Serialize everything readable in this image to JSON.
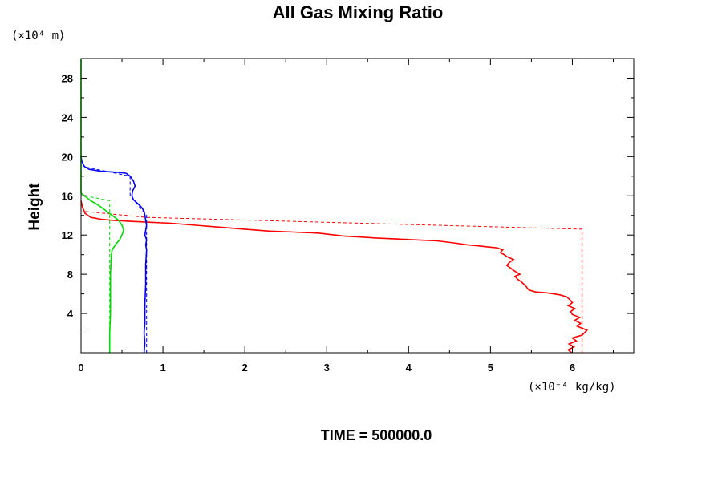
{
  "chart_data": {
    "type": "line",
    "title": "All Gas Mixing Ratio",
    "ylabel": "Height",
    "xlabel": "",
    "x_scale_label": "(×10⁻⁴ kg/kg)",
    "y_scale_label": "(×10⁴ m)",
    "footer": "TIME = 500000.0",
    "xlim": [
      0,
      6.75
    ],
    "ylim": [
      0,
      30
    ],
    "x_ticks": [
      0,
      1,
      2,
      3,
      4,
      5,
      6
    ],
    "x_tick_labels": [
      "0",
      "1",
      "2",
      "3",
      "4",
      "5",
      "6"
    ],
    "y_ticks": [
      4,
      8,
      12,
      16,
      20,
      24,
      28
    ],
    "y_tick_labels": [
      "4",
      "8",
      "12",
      "16",
      "20",
      "24",
      "28"
    ],
    "grid": false,
    "series": [
      {
        "color": "#ff0000",
        "style": "solid",
        "points": [
          [
            5.99,
            0.0
          ],
          [
            5.95,
            0.3
          ],
          [
            6.02,
            0.6
          ],
          [
            5.96,
            0.9
          ],
          [
            6.05,
            1.2
          ],
          [
            6.0,
            1.5
          ],
          [
            6.12,
            1.8
          ],
          [
            6.18,
            2.3
          ],
          [
            6.06,
            2.7
          ],
          [
            6.1,
            3.0
          ],
          [
            6.03,
            3.3
          ],
          [
            6.09,
            3.6
          ],
          [
            6.0,
            3.9
          ],
          [
            5.98,
            4.2
          ],
          [
            6.03,
            4.5
          ],
          [
            5.95,
            4.8
          ],
          [
            6.0,
            5.1
          ],
          [
            5.97,
            5.4
          ],
          [
            5.93,
            5.7
          ],
          [
            5.85,
            5.9
          ],
          [
            5.7,
            6.1
          ],
          [
            5.55,
            6.2
          ],
          [
            5.47,
            6.4
          ],
          [
            5.43,
            6.8
          ],
          [
            5.38,
            7.2
          ],
          [
            5.33,
            7.5
          ],
          [
            5.3,
            7.8
          ],
          [
            5.36,
            8.0
          ],
          [
            5.3,
            8.3
          ],
          [
            5.25,
            8.6
          ],
          [
            5.2,
            8.9
          ],
          [
            5.23,
            9.2
          ],
          [
            5.28,
            9.5
          ],
          [
            5.2,
            9.8
          ],
          [
            5.17,
            10.0
          ],
          [
            5.12,
            10.2
          ],
          [
            5.15,
            10.5
          ],
          [
            5.08,
            10.7
          ],
          [
            4.96,
            10.8
          ],
          [
            4.85,
            10.9
          ],
          [
            4.72,
            11.0
          ],
          [
            4.55,
            11.2
          ],
          [
            4.35,
            11.4
          ],
          [
            4.1,
            11.5
          ],
          [
            3.85,
            11.6
          ],
          [
            3.6,
            11.7
          ],
          [
            3.4,
            11.8
          ],
          [
            3.2,
            11.9
          ],
          [
            3.1,
            12.0
          ],
          [
            2.9,
            12.2
          ],
          [
            2.6,
            12.3
          ],
          [
            2.3,
            12.4
          ],
          [
            2.0,
            12.6
          ],
          [
            1.7,
            12.8
          ],
          [
            1.4,
            13.0
          ],
          [
            1.1,
            13.2
          ],
          [
            0.85,
            13.3
          ],
          [
            0.6,
            13.4
          ],
          [
            0.4,
            13.5
          ],
          [
            0.25,
            13.6
          ],
          [
            0.12,
            13.8
          ],
          [
            0.05,
            14.2
          ],
          [
            0.02,
            14.8
          ],
          [
            0.0,
            15.5
          ]
        ]
      },
      {
        "color": "#ff0000",
        "style": "dashed",
        "points": [
          [
            6.12,
            0.0
          ],
          [
            6.12,
            12.6
          ],
          [
            0.8,
            13.8
          ],
          [
            0.05,
            14.4
          ],
          [
            0.0,
            15.0
          ]
        ]
      },
      {
        "color": "#0000ff",
        "style": "solid",
        "points": [
          [
            0.77,
            0.0
          ],
          [
            0.78,
            1.0
          ],
          [
            0.77,
            2.0
          ],
          [
            0.78,
            3.0
          ],
          [
            0.78,
            5.0
          ],
          [
            0.79,
            7.0
          ],
          [
            0.79,
            9.0
          ],
          [
            0.8,
            10.5
          ],
          [
            0.79,
            11.0
          ],
          [
            0.8,
            11.5
          ],
          [
            0.78,
            12.0
          ],
          [
            0.79,
            12.5
          ],
          [
            0.8,
            13.0
          ],
          [
            0.79,
            13.5
          ],
          [
            0.78,
            14.0
          ],
          [
            0.77,
            14.4
          ],
          [
            0.75,
            14.7
          ],
          [
            0.72,
            15.0
          ],
          [
            0.68,
            15.3
          ],
          [
            0.64,
            15.6
          ],
          [
            0.62,
            16.0
          ],
          [
            0.63,
            16.5
          ],
          [
            0.66,
            17.0
          ],
          [
            0.64,
            17.5
          ],
          [
            0.6,
            18.0
          ],
          [
            0.55,
            18.3
          ],
          [
            0.45,
            18.4
          ],
          [
            0.25,
            18.5
          ],
          [
            0.1,
            18.7
          ],
          [
            0.04,
            19.0
          ],
          [
            0.01,
            19.5
          ],
          [
            0.0,
            20.0
          ]
        ]
      },
      {
        "color": "#0000ff",
        "style": "dashed",
        "points": [
          [
            0.8,
            0.0
          ],
          [
            0.8,
            14.0
          ],
          [
            0.6,
            16.0
          ],
          [
            0.6,
            18.0
          ],
          [
            0.02,
            19.0
          ]
        ]
      },
      {
        "color": "#00dd00",
        "style": "solid",
        "points": [
          [
            0.35,
            0.0
          ],
          [
            0.35,
            2.0
          ],
          [
            0.36,
            4.0
          ],
          [
            0.36,
            6.0
          ],
          [
            0.36,
            8.0
          ],
          [
            0.37,
            10.0
          ],
          [
            0.38,
            10.5
          ],
          [
            0.42,
            11.0
          ],
          [
            0.47,
            11.5
          ],
          [
            0.5,
            12.0
          ],
          [
            0.52,
            12.5
          ],
          [
            0.5,
            13.0
          ],
          [
            0.46,
            13.5
          ],
          [
            0.38,
            14.0
          ],
          [
            0.3,
            14.5
          ],
          [
            0.22,
            15.0
          ],
          [
            0.12,
            15.5
          ],
          [
            0.04,
            16.0
          ],
          [
            0.0,
            16.3
          ],
          [
            0.0,
            30.0
          ]
        ]
      },
      {
        "color": "#00dd00",
        "style": "dashed",
        "points": [
          [
            0.35,
            0.0
          ],
          [
            0.35,
            15.5
          ],
          [
            0.05,
            16.0
          ],
          [
            0.0,
            16.2
          ]
        ]
      }
    ]
  }
}
